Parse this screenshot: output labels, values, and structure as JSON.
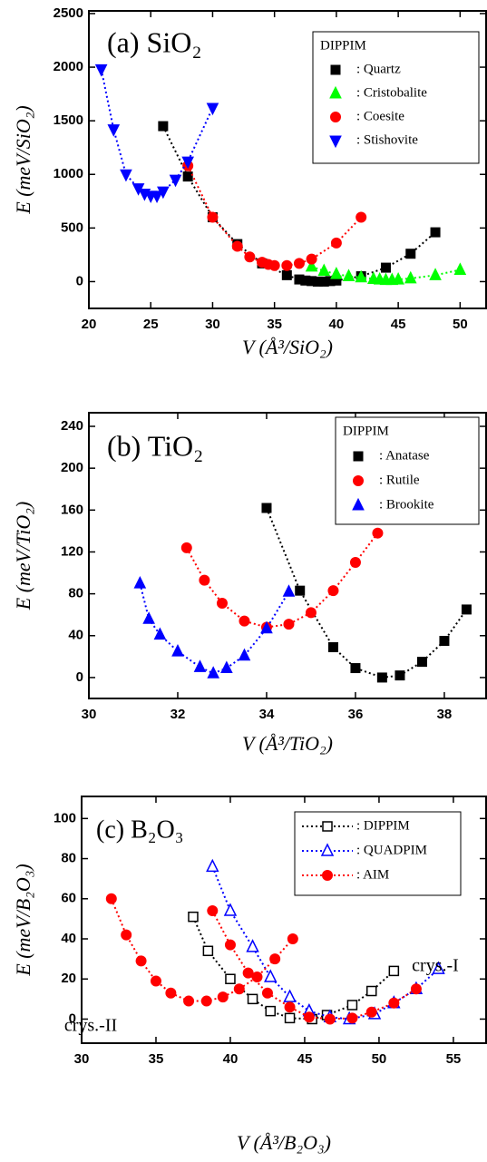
{
  "chart_data": [
    {
      "type": "scatter",
      "title": "(a) SiO₂",
      "x_label": "V (Å³/SiO₂)",
      "y_label": "E (meV/SiO₂)",
      "legend_title": "DIPPIM",
      "xlim": [
        20,
        52.1
      ],
      "ylim": [
        -250,
        2525
      ],
      "xticks": [
        20,
        25,
        30,
        35,
        40,
        45,
        50
      ],
      "yticks": [
        0,
        500,
        1000,
        1500,
        2000,
        2500
      ],
      "series": [
        {
          "name": ": Quartz",
          "color": "#000000",
          "marker": "square",
          "filled": true,
          "x": [
            26,
            28,
            30,
            32,
            34,
            36,
            37,
            37.5,
            38,
            38.5,
            39,
            39.5,
            40,
            42,
            44,
            46,
            48
          ],
          "values": [
            1450,
            980,
            600,
            350,
            170,
            60,
            20,
            10,
            5,
            0,
            0,
            5,
            10,
            50,
            130,
            260,
            460
          ]
        },
        {
          "name": ": Cristobalite",
          "color": "#00ff00",
          "marker": "triangle-up",
          "filled": true,
          "x": [
            38,
            39,
            40,
            41,
            42,
            43,
            43.5,
            44,
            44.5,
            45,
            46,
            48,
            50
          ],
          "values": [
            140,
            100,
            70,
            50,
            40,
            25,
            20,
            15,
            15,
            20,
            30,
            60,
            110
          ]
        },
        {
          "name": ": Coesite",
          "color": "#ff0000",
          "marker": "circle",
          "filled": true,
          "x": [
            28,
            30,
            32,
            33,
            34,
            34.5,
            35,
            36,
            37,
            38,
            40,
            42
          ],
          "values": [
            1080,
            600,
            330,
            230,
            180,
            160,
            150,
            150,
            170,
            210,
            360,
            600
          ]
        },
        {
          "name": ": Stishovite",
          "color": "#0000ff",
          "marker": "triangle-down",
          "filled": true,
          "x": [
            21,
            22,
            23,
            24,
            24.5,
            25,
            25.5,
            26,
            27,
            28,
            30
          ],
          "values": [
            1980,
            1420,
            1000,
            870,
            820,
            800,
            800,
            840,
            950,
            1120,
            1620
          ]
        }
      ]
    },
    {
      "type": "scatter",
      "title": "(b) TiO₂",
      "x_label": "V (Å³/TiO₂)",
      "y_label": "E (meV/TiO₂)",
      "legend_title": "DIPPIM",
      "xlim": [
        30,
        38.94
      ],
      "ylim": [
        -20,
        253
      ],
      "xticks": [
        30,
        32,
        34,
        36,
        38
      ],
      "yticks": [
        0,
        40,
        80,
        120,
        160,
        200,
        240
      ],
      "series": [
        {
          "name": ": Anatase",
          "color": "#000000",
          "marker": "square",
          "filled": true,
          "x": [
            34,
            34.75,
            35.5,
            36,
            36.6,
            37,
            37.5,
            38,
            38.5
          ],
          "values": [
            162,
            83,
            29,
            9,
            0,
            2,
            15,
            35,
            65
          ]
        },
        {
          "name": ": Rutile",
          "color": "#ff0000",
          "marker": "circle",
          "filled": true,
          "x": [
            32.2,
            32.6,
            33,
            33.5,
            34,
            34.5,
            35,
            35.5,
            36,
            36.5
          ],
          "values": [
            124,
            93,
            71,
            54,
            48,
            51,
            62,
            83,
            110,
            138
          ]
        },
        {
          "name": ": Brookite",
          "color": "#0000ff",
          "marker": "triangle-up",
          "filled": true,
          "x": [
            31.15,
            31.35,
            31.6,
            32,
            32.5,
            32.8,
            33.1,
            33.5,
            34,
            34.5
          ],
          "values": [
            90,
            56,
            41,
            25,
            10,
            4,
            9,
            21,
            47,
            82
          ]
        }
      ]
    },
    {
      "type": "scatter",
      "title": "(c) B₂O₃",
      "x_label": "V  (Å³/B₂O₃)",
      "y_label": "E  (meV/B₂O₃)",
      "annotations": [
        "crys.-I",
        "crys.-II"
      ],
      "xlim": [
        30,
        57.2
      ],
      "ylim": [
        -12,
        111
      ],
      "xticks": [
        30,
        35,
        40,
        45,
        50,
        55
      ],
      "yticks": [
        0,
        20,
        40,
        60,
        80,
        100
      ],
      "series": [
        {
          "name": ": DIPPIM",
          "color": "#000000",
          "marker": "square",
          "filled": false,
          "x": [
            37.5,
            38.5,
            40,
            41.5,
            42.7,
            44,
            45.5,
            46.5,
            48.2,
            49.5,
            51
          ],
          "values": [
            51,
            34,
            20,
            10,
            4,
            0.5,
            0,
            2,
            7,
            14,
            24
          ]
        },
        {
          "name": ": QUADPIM",
          "color": "#0000ff",
          "marker": "triangle-up",
          "filled": false,
          "x": [
            38.8,
            40,
            41.5,
            42.7,
            44,
            45.3,
            46.7,
            48,
            49.7,
            51,
            52.5,
            54
          ],
          "values": [
            76,
            54,
            36,
            21,
            11,
            4,
            1,
            0,
            2.5,
            8,
            15,
            25
          ]
        },
        {
          "name": ": AIM",
          "color": "#ff0000",
          "marker": "circle",
          "filled": true,
          "x": [
            32,
            33,
            34,
            35,
            36,
            37.2,
            38.4,
            39.5,
            40.6,
            41.8,
            43,
            44.2,
            null,
            38.8,
            40,
            41.2,
            42.5,
            44,
            45.3,
            46.7,
            48.2,
            49.5,
            51,
            52.5
          ],
          "values": [
            60,
            42,
            29,
            19,
            13,
            9,
            9,
            11,
            15,
            21,
            30,
            40,
            null,
            54,
            37,
            23,
            13,
            6,
            1,
            0,
            0.5,
            3.5,
            8,
            15
          ]
        }
      ]
    }
  ]
}
